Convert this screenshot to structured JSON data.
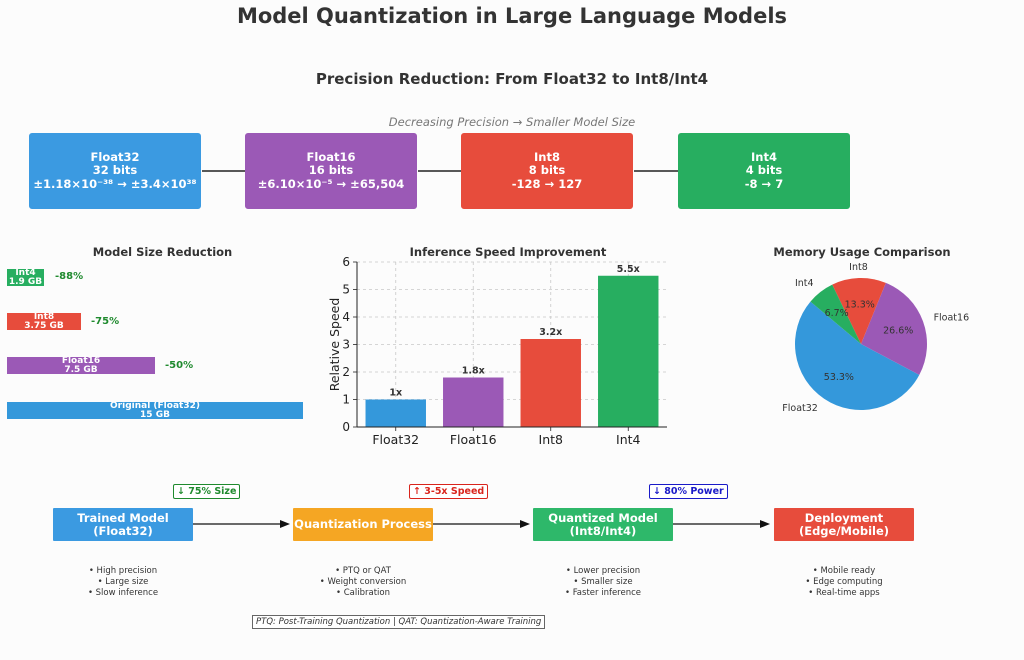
{
  "title": "Model Quantization in Large Language Models",
  "subtitle": "Precision Reduction: From Float32 to Int8/Int4",
  "precision_note": "Decreasing Precision → Smaller Model Size",
  "precision_boxes": [
    {
      "name": "Float32",
      "bits": "32 bits",
      "range": "±1.18×10⁻³⁸ → ±3.4×10³⁸",
      "color": "#3b9ae1"
    },
    {
      "name": "Float16",
      "bits": "16 bits",
      "range": "±6.10×10⁻⁵ → ±65,504",
      "color": "#9b59b6"
    },
    {
      "name": "Int8",
      "bits": "8 bits",
      "range": "-128 → 127",
      "color": "#e74c3c"
    },
    {
      "name": "Int4",
      "bits": "4 bits",
      "range": "-8 → 7",
      "color": "#27ae60"
    }
  ],
  "size_chart": {
    "title": "Model Size Reduction",
    "bars": [
      {
        "label": "Int4",
        "size": "1.9 GB",
        "value": 1.9,
        "reduction": "-88%",
        "color": "#27ae60"
      },
      {
        "label": "Int8",
        "size": "3.75 GB",
        "value": 3.75,
        "reduction": "-75%",
        "color": "#e74c3c"
      },
      {
        "label": "Float16",
        "size": "7.5 GB",
        "value": 7.5,
        "reduction": "-50%",
        "color": "#9b59b6"
      },
      {
        "label": "Original (Float32)",
        "size": "15 GB",
        "value": 15,
        "reduction": "",
        "color": "#3498db"
      }
    ]
  },
  "chart_data": {
    "type": "bar",
    "title": "Inference Speed Improvement",
    "ylabel": "Relative Speed",
    "xlabel": "",
    "categories": [
      "Float32",
      "Float16",
      "Int8",
      "Int4"
    ],
    "values": [
      1,
      1.8,
      3.2,
      5.5
    ],
    "value_labels": [
      "1x",
      "1.8x",
      "3.2x",
      "5.5x"
    ],
    "colors": [
      "#3498db",
      "#9b59b6",
      "#e74c3c",
      "#27ae60"
    ],
    "ylim": [
      0,
      6
    ],
    "yticks": [
      0,
      1,
      2,
      3,
      4,
      5,
      6
    ],
    "grid": true
  },
  "memory_pie": {
    "type": "pie",
    "title": "Memory Usage Comparison",
    "slices": [
      {
        "label": "Float32",
        "value": 53.3,
        "pct": "53.3%",
        "color": "#3498db"
      },
      {
        "label": "Float16",
        "value": 26.6,
        "pct": "26.6%",
        "color": "#9b59b6"
      },
      {
        "label": "Int8",
        "value": 13.3,
        "pct": "13.3%",
        "color": "#e74c3c"
      },
      {
        "label": "Int4",
        "value": 6.7,
        "pct": "6.7%",
        "color": "#27ae60"
      }
    ]
  },
  "flow": {
    "steps": [
      {
        "title": "Trained Model",
        "sub": "(Float32)",
        "color": "#3b9ae1",
        "bullets": [
          "• High precision",
          "• Large size",
          "• Slow inference"
        ]
      },
      {
        "title": "Quantization Process",
        "sub": "",
        "color": "#f5a623",
        "bullets": [
          "• PTQ or QAT",
          "• Weight conversion",
          "• Calibration"
        ]
      },
      {
        "title": "Quantized Model",
        "sub": "(Int8/Int4)",
        "color": "#2eb86a",
        "bullets": [
          "• Lower precision",
          "• Smaller size",
          "• Faster inference"
        ]
      },
      {
        "title": "Deployment",
        "sub": "(Edge/Mobile)",
        "color": "#e74c3c",
        "bullets": [
          "• Mobile ready",
          "• Edge computing",
          "• Real-time apps"
        ]
      }
    ],
    "badges": [
      {
        "text": "↓ 75% Size",
        "color": "#1f8a2e"
      },
      {
        "text": "↑ 3-5x Speed",
        "color": "#d9241c"
      },
      {
        "text": "↓ 80% Power",
        "color": "#1a1ac8"
      }
    ],
    "footnote": "PTQ: Post-Training Quantization | QAT: Quantization-Aware Training"
  }
}
